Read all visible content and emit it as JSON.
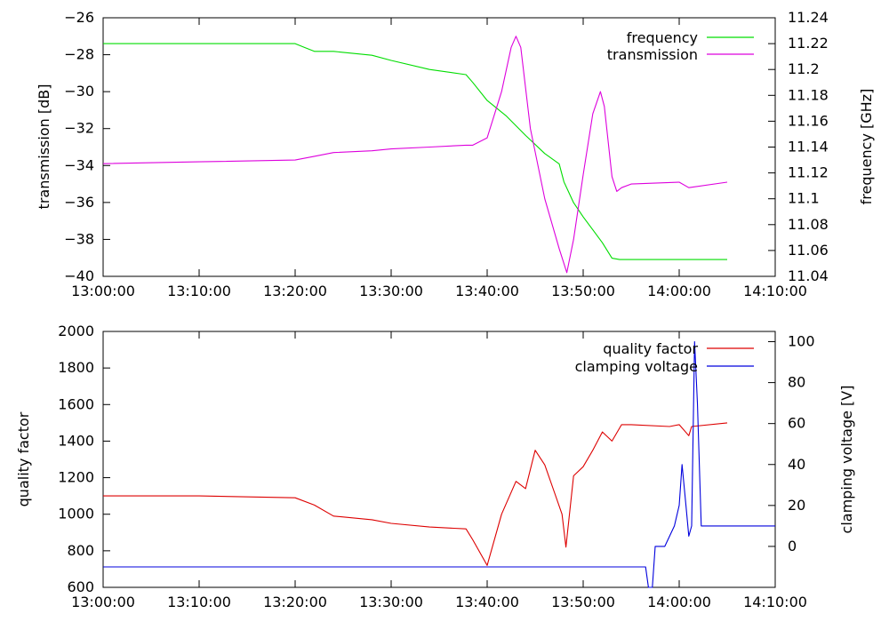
{
  "chart_data": [
    {
      "type": "line",
      "xlabel": "",
      "ylabel": "transmission [dB]",
      "y2label": "frequency [GHz]",
      "x_ticks": [
        "13:00:00",
        "13:10:00",
        "13:20:00",
        "13:30:00",
        "13:40:00",
        "13:50:00",
        "14:00:00",
        "14:10:00"
      ],
      "xlim_minutes": [
        0,
        70
      ],
      "ylim": [
        -40,
        -26
      ],
      "y_ticks": [
        "-40",
        "-38",
        "-36",
        "-34",
        "-32",
        "-30",
        "-28",
        "-26"
      ],
      "y2lim": [
        11.04,
        11.24
      ],
      "y2_ticks": [
        "11.04",
        "11.06",
        "11.08",
        "11.1",
        "11.12",
        "11.14",
        "11.16",
        "11.18",
        "11.2",
        "11.22",
        "11.24"
      ],
      "legend_position": "top-right",
      "series": [
        {
          "name": "frequency",
          "axis": "right",
          "color": "#00dd00",
          "x": [
            0,
            20,
            21,
            22,
            24,
            28,
            30,
            34,
            37.8,
            38.5,
            40,
            42,
            44,
            46,
            47.5,
            48,
            49,
            50,
            51,
            52,
            53,
            53.8,
            54.5,
            65
          ],
          "y": [
            11.22,
            11.22,
            11.217,
            11.214,
            11.214,
            11.211,
            11.207,
            11.2,
            11.196,
            11.19,
            11.176,
            11.164,
            11.149,
            11.135,
            11.127,
            11.113,
            11.097,
            11.086,
            11.076,
            11.066,
            11.054,
            11.053,
            11.053,
            11.053
          ]
        },
        {
          "name": "transmission",
          "axis": "left",
          "color": "#dd00dd",
          "x": [
            0,
            10,
            20,
            22,
            24,
            28,
            30,
            34,
            37.8,
            38.5,
            40,
            41.5,
            42.5,
            43,
            43.5,
            44.5,
            46,
            47.5,
            48.3,
            49,
            50,
            51,
            51.8,
            52.2,
            53,
            53.5,
            54,
            55,
            60,
            61,
            65
          ],
          "y": [
            -33.9,
            -33.8,
            -33.7,
            -33.5,
            -33.3,
            -33.2,
            -33.1,
            -33,
            -32.9,
            -32.9,
            -32.5,
            -30,
            -27.6,
            -27,
            -27.6,
            -32,
            -35.8,
            -38.5,
            -39.8,
            -38,
            -34.5,
            -31.2,
            -30,
            -30.8,
            -34.6,
            -35.4,
            -35.2,
            -35,
            -34.9,
            -35.2,
            -34.9
          ]
        }
      ]
    },
    {
      "type": "line",
      "xlabel": "",
      "ylabel": "quality factor",
      "y2label": "clamping voltage [V]",
      "x_ticks": [
        "13:00:00",
        "13:10:00",
        "13:20:00",
        "13:30:00",
        "13:40:00",
        "13:50:00",
        "14:00:00",
        "14:10:00"
      ],
      "xlim_minutes": [
        0,
        70
      ],
      "ylim": [
        600,
        2000
      ],
      "y_ticks": [
        "600",
        "800",
        "1000",
        "1200",
        "1400",
        "1600",
        "1800",
        "2000"
      ],
      "y2lim": [
        -20,
        105
      ],
      "y2_ticks": [
        "0",
        "20",
        "40",
        "60",
        "80",
        "100"
      ],
      "legend_position": "top-right",
      "series": [
        {
          "name": "quality factor",
          "axis": "left",
          "color": "#dd0000",
          "x": [
            0,
            10,
            20,
            22,
            24,
            28,
            30,
            34,
            37.8,
            38.5,
            40,
            41.5,
            43,
            44,
            45,
            46,
            47,
            47.8,
            48.2,
            49,
            50,
            51,
            52,
            53,
            54,
            55,
            59,
            60,
            61,
            61.3,
            65
          ],
          "y": [
            1100,
            1100,
            1090,
            1050,
            990,
            970,
            950,
            930,
            920,
            860,
            720,
            1000,
            1180,
            1140,
            1350,
            1270,
            1120,
            1000,
            820,
            1210,
            1260,
            1350,
            1450,
            1400,
            1490,
            1490,
            1480,
            1490,
            1430,
            1480,
            1500
          ]
        },
        {
          "name": "clamping voltage",
          "axis": "right",
          "color": "#0000dd",
          "x": [
            0,
            56.5,
            56.8,
            57.2,
            57.5,
            58.5,
            59,
            59.5,
            60,
            60.3,
            60.7,
            61,
            61.3,
            61.6,
            61.9,
            62.3,
            62.7,
            63,
            70
          ],
          "y": [
            -10,
            -10,
            -20,
            -20,
            0,
            0,
            5,
            10,
            20,
            40,
            20,
            5,
            10,
            100,
            70,
            10,
            10,
            10,
            10
          ]
        }
      ]
    }
  ]
}
